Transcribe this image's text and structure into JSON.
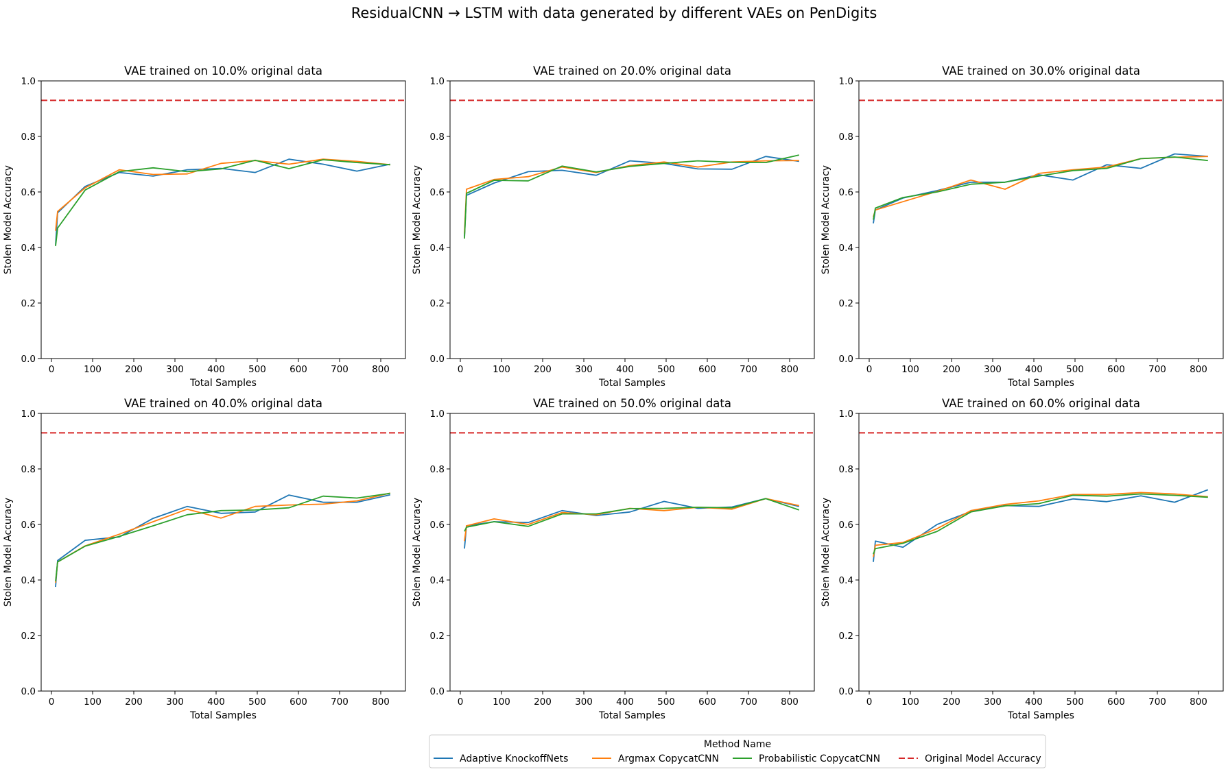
{
  "figure": {
    "suptitle": "ResidualCNN → LSTM with data generated by different VAEs on PenDigits"
  },
  "legend": {
    "title": "Method Name",
    "placement": "bottom-center"
  },
  "chart_data": [
    {
      "type": "line",
      "title": "VAE trained on 10.0% original data",
      "xlabel": "Total Samples",
      "ylabel": "Stolen Model Accuracy",
      "xlim": [
        -25,
        860
      ],
      "ylim": [
        0.0,
        1.0
      ],
      "xticks": [
        0,
        100,
        200,
        300,
        400,
        500,
        600,
        700,
        800
      ],
      "yticks": [
        0.0,
        0.2,
        0.4,
        0.6,
        0.8,
        1.0
      ],
      "grid": false,
      "x": [
        10,
        15,
        82,
        165,
        247,
        330,
        412,
        495,
        577,
        660,
        742,
        823
      ],
      "series": [
        {
          "name": "Adaptive KnockoffNets",
          "color": "#1f77b4",
          "style": "solid",
          "values": [
            0.41,
            0.525,
            0.62,
            0.67,
            0.657,
            0.68,
            0.685,
            0.67,
            0.718,
            0.7,
            0.675,
            0.7
          ]
        },
        {
          "name": "Argmax CopycatCNN",
          "color": "#ff7f0e",
          "style": "solid",
          "values": [
            0.46,
            0.53,
            0.615,
            0.68,
            0.663,
            0.665,
            0.703,
            0.713,
            0.7,
            0.718,
            0.71,
            0.698
          ]
        },
        {
          "name": "Probabilistic CopycatCNN",
          "color": "#2ca02c",
          "style": "solid",
          "values": [
            0.405,
            0.47,
            0.607,
            0.673,
            0.687,
            0.673,
            0.683,
            0.714,
            0.684,
            0.716,
            0.706,
            0.698
          ]
        }
      ],
      "reference": {
        "name": "Original Model Accuracy",
        "color": "#d62728",
        "style": "dashed",
        "value": 0.93
      }
    },
    {
      "type": "line",
      "title": "VAE trained on 20.0% original data",
      "xlabel": "Total Samples",
      "ylabel": "Stolen Model Accuracy",
      "xlim": [
        -25,
        860
      ],
      "ylim": [
        0.0,
        1.0
      ],
      "xticks": [
        0,
        100,
        200,
        300,
        400,
        500,
        600,
        700,
        800
      ],
      "yticks": [
        0.0,
        0.2,
        0.4,
        0.6,
        0.8,
        1.0
      ],
      "grid": false,
      "x": [
        10,
        15,
        82,
        165,
        247,
        330,
        412,
        495,
        577,
        660,
        742,
        823
      ],
      "series": [
        {
          "name": "Adaptive KnockoffNets",
          "color": "#1f77b4",
          "style": "solid",
          "values": [
            0.44,
            0.588,
            0.632,
            0.673,
            0.678,
            0.66,
            0.712,
            0.703,
            0.683,
            0.682,
            0.728,
            0.71
          ]
        },
        {
          "name": "Argmax CopycatCNN",
          "color": "#ff7f0e",
          "style": "solid",
          "values": [
            0.45,
            0.61,
            0.645,
            0.655,
            0.69,
            0.67,
            0.695,
            0.708,
            0.69,
            0.708,
            0.712,
            0.713
          ]
        },
        {
          "name": "Probabilistic CopycatCNN",
          "color": "#2ca02c",
          "style": "solid",
          "values": [
            0.432,
            0.595,
            0.642,
            0.64,
            0.693,
            0.672,
            0.692,
            0.703,
            0.712,
            0.707,
            0.706,
            0.733
          ]
        }
      ],
      "reference": {
        "name": "Original Model Accuracy",
        "color": "#d62728",
        "style": "dashed",
        "value": 0.93
      }
    },
    {
      "type": "line",
      "title": "VAE trained on 30.0% original data",
      "xlabel": "Total Samples",
      "ylabel": "Stolen Model Accuracy",
      "xlim": [
        -25,
        860
      ],
      "ylim": [
        0.0,
        1.0
      ],
      "xticks": [
        0,
        100,
        200,
        300,
        400,
        500,
        600,
        700,
        800
      ],
      "yticks": [
        0.0,
        0.2,
        0.4,
        0.6,
        0.8,
        1.0
      ],
      "grid": false,
      "x": [
        10,
        15,
        82,
        165,
        247,
        330,
        412,
        495,
        577,
        660,
        742,
        823
      ],
      "series": [
        {
          "name": "Adaptive KnockoffNets",
          "color": "#1f77b4",
          "style": "solid",
          "values": [
            0.487,
            0.535,
            0.578,
            0.605,
            0.635,
            0.635,
            0.662,
            0.643,
            0.698,
            0.685,
            0.737,
            0.728
          ]
        },
        {
          "name": "Argmax CopycatCNN",
          "color": "#ff7f0e",
          "style": "solid",
          "values": [
            0.51,
            0.535,
            0.565,
            0.602,
            0.643,
            0.61,
            0.667,
            0.68,
            0.69,
            0.72,
            0.725,
            0.728
          ]
        },
        {
          "name": "Probabilistic CopycatCNN",
          "color": "#2ca02c",
          "style": "solid",
          "values": [
            0.5,
            0.542,
            0.58,
            0.6,
            0.628,
            0.635,
            0.657,
            0.677,
            0.685,
            0.72,
            0.726,
            0.713
          ]
        }
      ],
      "reference": {
        "name": "Original Model Accuracy",
        "color": "#d62728",
        "style": "dashed",
        "value": 0.93
      }
    },
    {
      "type": "line",
      "title": "VAE trained on 40.0% original data",
      "xlabel": "Total Samples",
      "ylabel": "Stolen Model Accuracy",
      "xlim": [
        -25,
        860
      ],
      "ylim": [
        0.0,
        1.0
      ],
      "xticks": [
        0,
        100,
        200,
        300,
        400,
        500,
        600,
        700,
        800
      ],
      "yticks": [
        0.0,
        0.2,
        0.4,
        0.6,
        0.8,
        1.0
      ],
      "grid": false,
      "x": [
        10,
        15,
        82,
        165,
        247,
        330,
        412,
        495,
        577,
        660,
        742,
        823
      ],
      "series": [
        {
          "name": "Adaptive KnockoffNets",
          "color": "#1f77b4",
          "style": "solid",
          "values": [
            0.375,
            0.47,
            0.543,
            0.555,
            0.622,
            0.665,
            0.64,
            0.645,
            0.706,
            0.68,
            0.68,
            0.707
          ]
        },
        {
          "name": "Argmax CopycatCNN",
          "color": "#ff7f0e",
          "style": "solid",
          "values": [
            0.39,
            0.465,
            0.523,
            0.565,
            0.61,
            0.655,
            0.623,
            0.665,
            0.67,
            0.673,
            0.685,
            0.713
          ]
        },
        {
          "name": "Probabilistic CopycatCNN",
          "color": "#2ca02c",
          "style": "solid",
          "values": [
            0.395,
            0.465,
            0.522,
            0.557,
            0.595,
            0.635,
            0.65,
            0.652,
            0.66,
            0.702,
            0.695,
            0.712
          ]
        }
      ],
      "reference": {
        "name": "Original Model Accuracy",
        "color": "#d62728",
        "style": "dashed",
        "value": 0.93
      }
    },
    {
      "type": "line",
      "title": "VAE trained on 50.0% original data",
      "xlabel": "Total Samples",
      "ylabel": "Stolen Model Accuracy",
      "xlim": [
        -25,
        860
      ],
      "ylim": [
        0.0,
        1.0
      ],
      "xticks": [
        0,
        100,
        200,
        300,
        400,
        500,
        600,
        700,
        800
      ],
      "yticks": [
        0.0,
        0.2,
        0.4,
        0.6,
        0.8,
        1.0
      ],
      "grid": false,
      "x": [
        10,
        15,
        82,
        165,
        247,
        330,
        412,
        495,
        577,
        660,
        742,
        823
      ],
      "series": [
        {
          "name": "Adaptive KnockoffNets",
          "color": "#1f77b4",
          "style": "solid",
          "values": [
            0.513,
            0.595,
            0.61,
            0.607,
            0.65,
            0.632,
            0.645,
            0.683,
            0.658,
            0.663,
            0.693,
            0.665
          ]
        },
        {
          "name": "Argmax CopycatCNN",
          "color": "#ff7f0e",
          "style": "solid",
          "values": [
            0.54,
            0.595,
            0.62,
            0.6,
            0.643,
            0.635,
            0.658,
            0.65,
            0.662,
            0.655,
            0.693,
            0.668
          ]
        },
        {
          "name": "Probabilistic CopycatCNN",
          "color": "#2ca02c",
          "style": "solid",
          "values": [
            0.575,
            0.59,
            0.61,
            0.593,
            0.638,
            0.638,
            0.657,
            0.658,
            0.662,
            0.66,
            0.693,
            0.652
          ]
        }
      ],
      "reference": {
        "name": "Original Model Accuracy",
        "color": "#d62728",
        "style": "dashed",
        "value": 0.93
      }
    },
    {
      "type": "line",
      "title": "VAE trained on 60.0% original data",
      "xlabel": "Total Samples",
      "ylabel": "Stolen Model Accuracy",
      "xlim": [
        -25,
        860
      ],
      "ylim": [
        0.0,
        1.0
      ],
      "xticks": [
        0,
        100,
        200,
        300,
        400,
        500,
        600,
        700,
        800
      ],
      "yticks": [
        0.0,
        0.2,
        0.4,
        0.6,
        0.8,
        1.0
      ],
      "grid": false,
      "x": [
        10,
        15,
        82,
        165,
        247,
        330,
        412,
        495,
        577,
        660,
        742,
        823
      ],
      "series": [
        {
          "name": "Adaptive KnockoffNets",
          "color": "#1f77b4",
          "style": "solid",
          "values": [
            0.465,
            0.54,
            0.518,
            0.6,
            0.647,
            0.668,
            0.665,
            0.692,
            0.682,
            0.703,
            0.68,
            0.725
          ]
        },
        {
          "name": "Argmax CopycatCNN",
          "color": "#ff7f0e",
          "style": "solid",
          "values": [
            0.483,
            0.525,
            0.535,
            0.585,
            0.65,
            0.672,
            0.685,
            0.708,
            0.708,
            0.715,
            0.71,
            0.7
          ]
        },
        {
          "name": "Probabilistic CopycatCNN",
          "color": "#2ca02c",
          "style": "solid",
          "values": [
            0.493,
            0.513,
            0.532,
            0.575,
            0.645,
            0.667,
            0.675,
            0.705,
            0.702,
            0.71,
            0.705,
            0.698
          ]
        }
      ],
      "reference": {
        "name": "Original Model Accuracy",
        "color": "#d62728",
        "style": "dashed",
        "value": 0.93
      }
    }
  ]
}
